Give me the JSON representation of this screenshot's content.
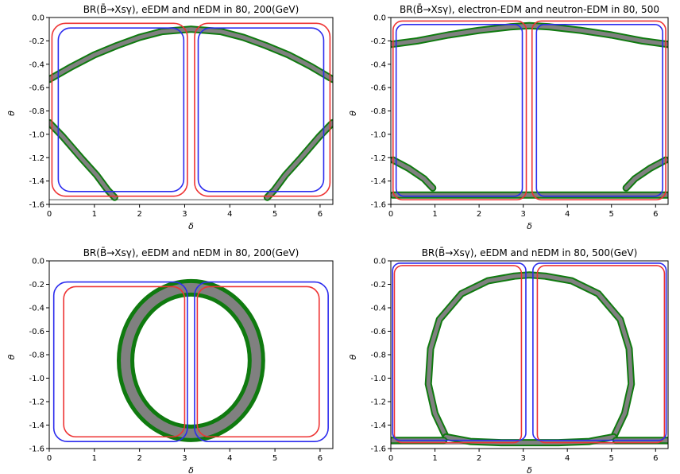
{
  "chart_data": [
    {
      "type": "line",
      "title": "BR(B̄→Xsγ), eEDM and nEDM in 80, 200(GeV)",
      "xlabel": "δ",
      "ylabel": "θ",
      "xlim": [
        0,
        6.283
      ],
      "ylim": [
        -1.6,
        0.0
      ],
      "xticks": [
        "0",
        "1",
        "2",
        "3",
        "4",
        "5",
        "6"
      ],
      "yticks": [
        "0.0",
        "-0.2",
        "-0.4",
        "-0.6",
        "-0.8",
        "-1.0",
        "-1.2",
        "-1.4",
        "-1.6"
      ],
      "colors": {
        "eEDM": "#ee3333",
        "nEDM": "#2b2bee",
        "br_grey": "#808080",
        "br_green": "#0f7a0f"
      },
      "hline": -1.56,
      "series": [
        {
          "color": "red",
          "boxes": [
            {
              "x0": 0.06,
              "x1": 3.06,
              "ytop": -0.05,
              "ybot": -1.53,
              "r": 0.5
            },
            {
              "x0": 3.22,
              "x1": 6.22,
              "ytop": -0.05,
              "ybot": -1.53,
              "r": 0.5
            }
          ]
        },
        {
          "color": "blue",
          "boxes": [
            {
              "x0": 0.2,
              "x1": 2.98,
              "ytop": -0.09,
              "ybot": -1.49,
              "r": 0.45
            },
            {
              "x0": 3.3,
              "x1": 6.08,
              "ytop": -0.09,
              "ybot": -1.49,
              "r": 0.45
            }
          ]
        },
        {
          "color": "band",
          "paths": [
            [
              [
                0,
                -0.53
              ],
              [
                0.5,
                -0.42
              ],
              [
                1,
                -0.32
              ],
              [
                1.5,
                -0.24
              ],
              [
                2,
                -0.17
              ],
              [
                2.5,
                -0.12
              ],
              [
                3.14,
                -0.1
              ],
              [
                3.8,
                -0.12
              ],
              [
                4.3,
                -0.17
              ],
              [
                4.8,
                -0.24
              ],
              [
                5.3,
                -0.32
              ],
              [
                5.8,
                -0.42
              ],
              [
                6.28,
                -0.53
              ]
            ],
            [
              [
                0,
                -0.9
              ],
              [
                0.3,
                -1.02
              ],
              [
                0.7,
                -1.2
              ],
              [
                1.05,
                -1.35
              ],
              [
                1.3,
                -1.48
              ],
              [
                1.45,
                -1.54
              ]
            ],
            [
              [
                6.28,
                -0.9
              ],
              [
                5.98,
                -1.02
              ],
              [
                5.58,
                -1.2
              ],
              [
                5.23,
                -1.35
              ],
              [
                4.98,
                -1.48
              ],
              [
                4.83,
                -1.54
              ]
            ]
          ]
        }
      ]
    },
    {
      "type": "line",
      "title": "BR(B̄→Xsγ), electron-EDM and neutron-EDM in 80, 500",
      "xlabel": "δ",
      "ylabel": "θ",
      "xlim": [
        0,
        6.283
      ],
      "ylim": [
        -1.6,
        0.0
      ],
      "xticks": [
        "0",
        "1",
        "2",
        "3",
        "4",
        "5",
        "6"
      ],
      "yticks": [
        "0.0",
        "-0.2",
        "-0.4",
        "-0.6",
        "-0.8",
        "-1.0",
        "-1.2",
        "-1.4",
        "-1.6"
      ],
      "colors": {
        "eEDM": "#ee3333",
        "nEDM": "#2b2bee",
        "br_grey": "#808080",
        "br_green": "#0f7a0f"
      },
      "hline": -1.53,
      "series": [
        {
          "color": "red",
          "boxes": [
            {
              "x0": 0.05,
              "x1": 3.07,
              "ytop": -0.03,
              "ybot": -1.56,
              "r": 0.35
            },
            {
              "x0": 3.2,
              "x1": 6.23,
              "ytop": -0.03,
              "ybot": -1.56,
              "r": 0.35
            }
          ]
        },
        {
          "color": "blue",
          "boxes": [
            {
              "x0": 0.12,
              "x1": 2.98,
              "ytop": -0.06,
              "ybot": -1.53,
              "r": 0.3
            },
            {
              "x0": 3.3,
              "x1": 6.16,
              "ytop": -0.06,
              "ybot": -1.53,
              "r": 0.3
            }
          ]
        },
        {
          "color": "band",
          "paths": [
            [
              [
                0,
                -0.23
              ],
              [
                0.6,
                -0.2
              ],
              [
                1.3,
                -0.15
              ],
              [
                2,
                -0.11
              ],
              [
                2.7,
                -0.08
              ],
              [
                3.14,
                -0.07
              ],
              [
                3.6,
                -0.08
              ],
              [
                4.3,
                -0.11
              ],
              [
                5,
                -0.15
              ],
              [
                5.7,
                -0.2
              ],
              [
                6.28,
                -0.23
              ]
            ],
            [
              [
                0.05,
                -1.22
              ],
              [
                0.4,
                -1.29
              ],
              [
                0.75,
                -1.38
              ],
              [
                0.95,
                -1.46
              ]
            ],
            [
              [
                6.23,
                -1.22
              ],
              [
                5.88,
                -1.29
              ],
              [
                5.53,
                -1.38
              ],
              [
                5.33,
                -1.46
              ]
            ],
            [
              [
                0.05,
                -1.52
              ],
              [
                6.28,
                -1.52
              ]
            ]
          ]
        }
      ]
    },
    {
      "type": "line",
      "title": "BR(B̄→Xsγ), eEDM and nEDM in 80, 200(GeV)",
      "xlabel": "δ",
      "ylabel": "θ",
      "xlim": [
        0,
        6.283
      ],
      "ylim": [
        -1.6,
        0.0
      ],
      "xticks": [
        "0",
        "1",
        "2",
        "3",
        "4",
        "5",
        "6"
      ],
      "yticks": [
        "0.0",
        "-0.2",
        "-0.4",
        "-0.6",
        "-0.8",
        "-1.0",
        "-1.2",
        "-1.4",
        "-1.6"
      ],
      "colors": {
        "eEDM": "#ee3333",
        "nEDM": "#2b2bee",
        "br_grey": "#808080",
        "br_green": "#0f7a0f"
      },
      "hline": null,
      "series": [
        {
          "color": "red",
          "boxes": [
            {
              "x0": 0.32,
              "x1": 3.0,
              "ytop": -0.22,
              "ybot": -1.5,
              "r": 0.45
            },
            {
              "x0": 3.28,
              "x1": 5.98,
              "ytop": -0.22,
              "ybot": -1.5,
              "r": 0.45
            }
          ]
        },
        {
          "color": "blue",
          "boxes": [
            {
              "x0": 0.1,
              "x1": 3.06,
              "ytop": -0.18,
              "ybot": -1.54,
              "r": 0.5
            },
            {
              "x0": 3.22,
              "x1": 6.18,
              "ytop": -0.18,
              "ybot": -1.54,
              "r": 0.5
            }
          ]
        },
        {
          "color": "band",
          "ellipse": {
            "cx": 3.14,
            "cy": -0.85,
            "rx": 1.45,
            "ry": 0.62
          }
        }
      ]
    },
    {
      "type": "line",
      "title": "BR(B̄→Xsγ), eEDM and nEDM in 80, 500(GeV)",
      "xlabel": "δ",
      "ylabel": "θ",
      "xlim": [
        0,
        6.283
      ],
      "ylim": [
        -1.6,
        0.0
      ],
      "xticks": [
        "0",
        "1",
        "2",
        "3",
        "4",
        "5",
        "6"
      ],
      "yticks": [
        "0.0",
        "-0.2",
        "-0.4",
        "-0.6",
        "-0.8",
        "-1.0",
        "-1.2",
        "-1.4",
        "-1.6"
      ],
      "colors": {
        "eEDM": "#ee3333",
        "nEDM": "#2b2bee",
        "br_grey": "#808080",
        "br_green": "#0f7a0f"
      },
      "hline": -1.56,
      "series": [
        {
          "color": "red",
          "boxes": [
            {
              "x0": 0.08,
              "x1": 2.96,
              "ytop": -0.04,
              "ybot": -1.55,
              "r": 0.3
            },
            {
              "x0": 3.32,
              "x1": 6.2,
              "ytop": -0.04,
              "ybot": -1.55,
              "r": 0.3
            }
          ]
        },
        {
          "color": "blue",
          "boxes": [
            {
              "x0": 0.04,
              "x1": 3.06,
              "ytop": -0.02,
              "ybot": -1.53,
              "r": 0.28
            },
            {
              "x0": 3.22,
              "x1": 6.24,
              "ytop": -0.02,
              "ybot": -1.53,
              "r": 0.28
            }
          ]
        },
        {
          "color": "band",
          "paths": [
            [
              [
                1.25,
                -1.5
              ],
              [
                1.0,
                -1.3
              ],
              [
                0.85,
                -1.05
              ],
              [
                0.9,
                -0.75
              ],
              [
                1.1,
                -0.5
              ],
              [
                1.6,
                -0.28
              ],
              [
                2.2,
                -0.17
              ],
              [
                2.8,
                -0.13
              ],
              [
                3.14,
                -0.12
              ],
              [
                3.5,
                -0.13
              ],
              [
                4.1,
                -0.17
              ],
              [
                4.7,
                -0.28
              ],
              [
                5.2,
                -0.5
              ],
              [
                5.4,
                -0.75
              ],
              [
                5.45,
                -1.05
              ],
              [
                5.3,
                -1.3
              ],
              [
                5.05,
                -1.5
              ]
            ],
            [
              [
                1.25,
                -1.5
              ],
              [
                1.8,
                -1.54
              ],
              [
                2.5,
                -1.55
              ],
              [
                3.14,
                -1.55
              ],
              [
                3.8,
                -1.55
              ],
              [
                4.5,
                -1.54
              ],
              [
                5.05,
                -1.5
              ]
            ],
            [
              [
                0.0,
                -1.53
              ],
              [
                1.2,
                -1.53
              ]
            ],
            [
              [
                5.1,
                -1.53
              ],
              [
                6.28,
                -1.53
              ]
            ]
          ]
        }
      ]
    }
  ]
}
